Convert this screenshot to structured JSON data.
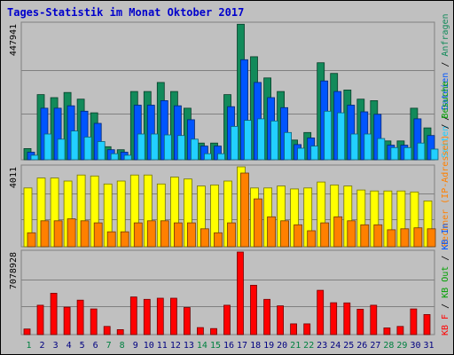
{
  "title": "Tages-Statistik im Monat Oktober 2017",
  "colors": {
    "anfragen": "#128a5a",
    "dateien": "#0055ff",
    "seiten": "#22d0ff",
    "rechner": "#ffff00",
    "besuche": "#ff8000",
    "kbin": "#ff0000",
    "kbout": "#ff4040",
    "weekend_label": "#008040",
    "weekday_label": "#000080"
  },
  "legend": {
    "top": {
      "anfragen": "Anfragen",
      "slash1": " / ",
      "dateien": "Dateien",
      "slash2": " / ",
      "seiten": "Seiten"
    },
    "middle": {
      "besuche": "Besuche",
      "slash1": " / ",
      "rechner": "Rechner (IP-Adressen)"
    },
    "bottom": {
      "kbin": "KB In",
      "slash1": " / ",
      "kbout": "KB Out",
      "slash2": " / ",
      "kbf": "KB F"
    }
  },
  "chart_data": [
    {
      "type": "bar",
      "name": "top",
      "ymax_label": "447941",
      "ylim": [
        0,
        447941
      ],
      "categories": [
        "1",
        "2",
        "3",
        "4",
        "5",
        "6",
        "7",
        "8",
        "9",
        "10",
        "11",
        "12",
        "13",
        "14",
        "15",
        "16",
        "17",
        "18",
        "19",
        "20",
        "21",
        "22",
        "23",
        "24",
        "25",
        "26",
        "27",
        "28",
        "29",
        "30",
        "31"
      ],
      "weekend": [
        1,
        7,
        8,
        14,
        15,
        21,
        22,
        28,
        29
      ],
      "series": [
        {
          "name": "Anfragen",
          "values": [
            37000,
            215000,
            205000,
            222000,
            200000,
            155000,
            43000,
            33000,
            225000,
            225000,
            255000,
            225000,
            170000,
            55000,
            55000,
            215000,
            447000,
            340000,
            270000,
            225000,
            65000,
            90000,
            320000,
            285000,
            230000,
            200000,
            195000,
            62000,
            62000,
            170000,
            105000
          ]
        },
        {
          "name": "Dateien",
          "values": [
            25000,
            170000,
            170000,
            178000,
            160000,
            120000,
            33000,
            25000,
            180000,
            180000,
            195000,
            178000,
            132000,
            45000,
            45000,
            175000,
            330000,
            255000,
            205000,
            172000,
            50000,
            72000,
            260000,
            225000,
            180000,
            158000,
            150000,
            48000,
            48000,
            135000,
            80000
          ]
        },
        {
          "name": "Seiten",
          "values": [
            15000,
            85000,
            68000,
            95000,
            75000,
            60000,
            20000,
            15000,
            85000,
            85000,
            82000,
            80000,
            68000,
            20000,
            20000,
            110000,
            130000,
            135000,
            128000,
            90000,
            38000,
            45000,
            160000,
            155000,
            85000,
            85000,
            70000,
            40000,
            40000,
            55000,
            35000
          ]
        }
      ]
    },
    {
      "type": "bar",
      "name": "middle",
      "ymax_label": "4011",
      "ylim": [
        0,
        4011
      ],
      "categories": [
        "1",
        "2",
        "3",
        "4",
        "5",
        "6",
        "7",
        "8",
        "9",
        "10",
        "11",
        "12",
        "13",
        "14",
        "15",
        "16",
        "17",
        "18",
        "19",
        "20",
        "21",
        "22",
        "23",
        "24",
        "25",
        "26",
        "27",
        "28",
        "29",
        "30",
        "31"
      ],
      "weekend": [
        1,
        7,
        8,
        14,
        15,
        21,
        22,
        28,
        29
      ],
      "series": [
        {
          "name": "Rechner (IP-Adressen)",
          "values": [
            2950,
            3450,
            3450,
            3300,
            3600,
            3550,
            3150,
            3300,
            3600,
            3600,
            3150,
            3500,
            3400,
            3050,
            3100,
            3300,
            4011,
            2950,
            2950,
            3050,
            2900,
            2950,
            3250,
            3100,
            3050,
            2850,
            2800,
            2800,
            2800,
            2750,
            2300
          ]
        },
        {
          "name": "Besuche",
          "values": [
            700,
            1300,
            1300,
            1400,
            1300,
            1200,
            750,
            750,
            1200,
            1300,
            1300,
            1200,
            1200,
            900,
            700,
            1200,
            3700,
            2400,
            1500,
            1300,
            1100,
            800,
            1200,
            1500,
            1300,
            1100,
            1100,
            850,
            900,
            950,
            900
          ]
        }
      ]
    },
    {
      "type": "bar",
      "name": "bottom",
      "ymax_label": "7078928",
      "ylim": [
        0,
        7078928
      ],
      "categories": [
        "1",
        "2",
        "3",
        "4",
        "5",
        "6",
        "7",
        "8",
        "9",
        "10",
        "11",
        "12",
        "13",
        "14",
        "15",
        "16",
        "17",
        "18",
        "19",
        "20",
        "21",
        "22",
        "23",
        "24",
        "25",
        "26",
        "27",
        "28",
        "29",
        "30",
        "31"
      ],
      "weekend": [
        1,
        7,
        8,
        14,
        15,
        21,
        22,
        28,
        29
      ],
      "series": [
        {
          "name": "KB In",
          "values": [
            480000,
            2520000,
            3550000,
            2350000,
            2950000,
            2200000,
            700000,
            430000,
            3230000,
            3020000,
            3120000,
            3120000,
            2320000,
            600000,
            520000,
            2520000,
            7078928,
            4230000,
            3020000,
            2470000,
            920000,
            920000,
            3800000,
            2730000,
            2720000,
            2180000,
            2520000,
            570000,
            700000,
            2200000,
            1720000
          ]
        }
      ]
    }
  ]
}
